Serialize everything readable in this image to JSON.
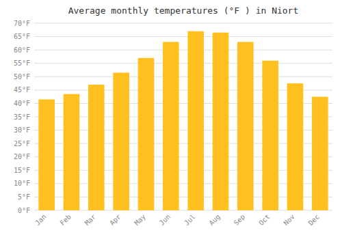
{
  "chart_data": {
    "type": "bar",
    "title": "Average monthly temperatures (°F ) in Niort",
    "categories": [
      "Jan",
      "Feb",
      "Mar",
      "Apr",
      "May",
      "Jun",
      "Jul",
      "Aug",
      "Sep",
      "Oct",
      "Nov",
      "Dec"
    ],
    "values": [
      41.5,
      43.5,
      47.0,
      51.5,
      57.0,
      63.0,
      67.0,
      66.5,
      63.0,
      56.0,
      47.5,
      42.5
    ],
    "color": "#FFC020",
    "ylim": [
      0,
      70
    ],
    "yticks": [
      {
        "value": 0,
        "label": "0°F"
      },
      {
        "value": 5,
        "label": "5°F"
      },
      {
        "value": 10,
        "label": "10°F"
      },
      {
        "value": 15,
        "label": "15°F"
      },
      {
        "value": 20,
        "label": "20°F"
      },
      {
        "value": 25,
        "label": "25°F"
      },
      {
        "value": 30,
        "label": "30°F"
      },
      {
        "value": 35,
        "label": "35°F"
      },
      {
        "value": 40,
        "label": "40°F"
      },
      {
        "value": 45,
        "label": "45°F"
      },
      {
        "value": 50,
        "label": "50°F"
      },
      {
        "value": 55,
        "label": "55°F"
      },
      {
        "value": 60,
        "label": "60°F"
      },
      {
        "value": 65,
        "label": "65°F"
      },
      {
        "value": 70,
        "label": "70°F"
      }
    ],
    "grid": true
  }
}
